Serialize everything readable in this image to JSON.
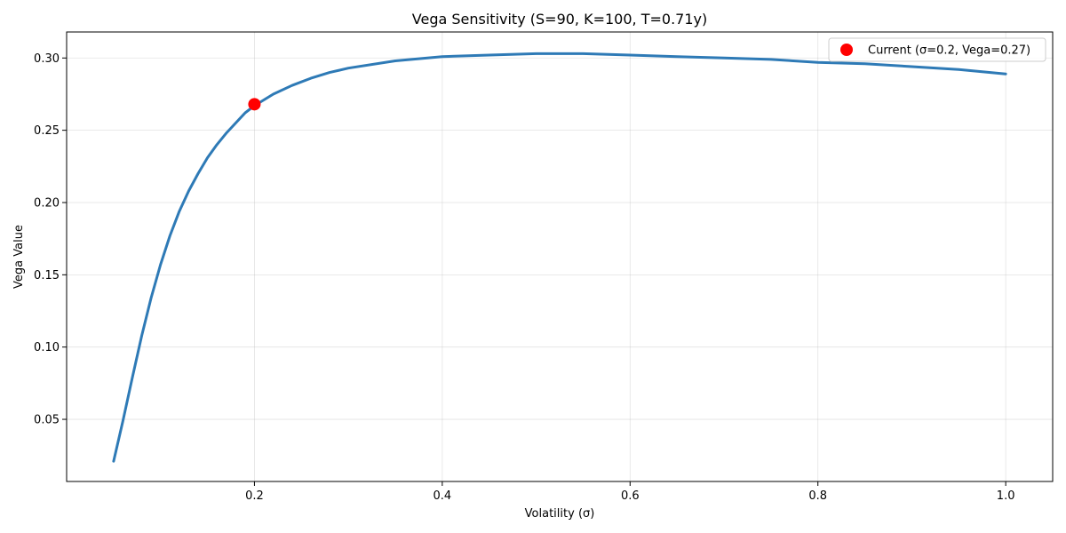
{
  "chart_data": {
    "type": "line",
    "title": "Vega Sensitivity (S=90, K=100, T=0.71y)",
    "xlabel": "Volatility (σ)",
    "ylabel": "Vega Value",
    "xlim": [
      0.0,
      1.05
    ],
    "ylim": [
      0.007,
      0.318
    ],
    "xticks": [
      0.2,
      0.4,
      0.6,
      0.8,
      1.0
    ],
    "xtick_labels": [
      "0.2",
      "0.4",
      "0.6",
      "0.8",
      "1.0"
    ],
    "yticks": [
      0.05,
      0.1,
      0.15,
      0.2,
      0.25,
      0.3
    ],
    "ytick_labels": [
      "0.05",
      "0.10",
      "0.15",
      "0.20",
      "0.25",
      "0.30"
    ],
    "grid": true,
    "legend_position": "top-right",
    "series": [
      {
        "name": "",
        "color": "#2e7ab6",
        "x": [
          0.05,
          0.06,
          0.07,
          0.08,
          0.09,
          0.1,
          0.11,
          0.12,
          0.13,
          0.14,
          0.15,
          0.16,
          0.17,
          0.18,
          0.19,
          0.2,
          0.22,
          0.24,
          0.26,
          0.28,
          0.3,
          0.35,
          0.4,
          0.45,
          0.5,
          0.53,
          0.55,
          0.6,
          0.65,
          0.7,
          0.75,
          0.8,
          0.85,
          0.9,
          0.95,
          1.0
        ],
        "y": [
          0.021,
          0.049,
          0.079,
          0.108,
          0.134,
          0.157,
          0.177,
          0.194,
          0.208,
          0.22,
          0.231,
          0.24,
          0.248,
          0.255,
          0.262,
          0.267,
          0.275,
          0.281,
          0.286,
          0.29,
          0.293,
          0.298,
          0.301,
          0.302,
          0.303,
          0.303,
          0.303,
          0.302,
          0.301,
          0.3,
          0.299,
          0.297,
          0.296,
          0.294,
          0.292,
          0.289
        ]
      }
    ],
    "marker": {
      "label": "Current (σ=0.2, Vega=0.27)",
      "x": 0.2,
      "y": 0.268,
      "color": "#ff0000"
    }
  }
}
